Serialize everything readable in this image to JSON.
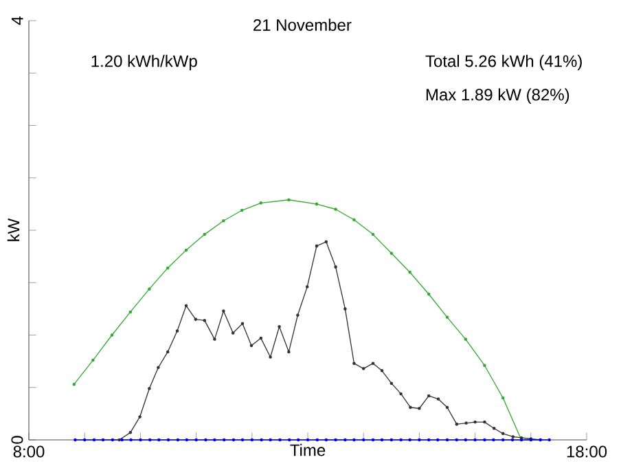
{
  "chart_data": {
    "type": "line",
    "title": "21 November",
    "xlabel": "Time",
    "ylabel": "kW",
    "annotations": [
      "1.20 kWh/kWp",
      "Total 5.26 kWh (41%)",
      "Max 1.89 kW (82%)"
    ],
    "xlim": [
      8,
      18
    ],
    "ylim": [
      0,
      4
    ],
    "xticks": [
      {
        "value": 8,
        "label": "8:00"
      },
      {
        "value": 9,
        "label": null
      },
      {
        "value": 10,
        "label": null
      },
      {
        "value": 11,
        "label": null
      },
      {
        "value": 12,
        "label": null
      },
      {
        "value": 13,
        "label": null
      },
      {
        "value": 14,
        "label": null
      },
      {
        "value": 15,
        "label": null
      },
      {
        "value": 16,
        "label": null
      },
      {
        "value": 17,
        "label": null
      },
      {
        "value": 18,
        "label": "18:00"
      }
    ],
    "yticks": [
      0,
      {
        "value": 0.5,
        "label": null
      },
      {
        "value": 1,
        "label": null
      },
      {
        "value": 1.5,
        "label": null
      },
      {
        "value": 2,
        "label": null
      },
      {
        "value": 2.5,
        "label": null
      },
      {
        "value": 3,
        "label": null
      },
      {
        "value": 3.5,
        "label": null
      },
      4
    ],
    "marker": "circle",
    "line_style": "solid",
    "series": [
      {
        "color": "#33aa33",
        "x": [
          8.81,
          9.15,
          9.49,
          9.82,
          10.16,
          10.49,
          10.82,
          11.15,
          11.49,
          11.82,
          12.16,
          12.66,
          13.16,
          13.5,
          13.83,
          14.17,
          14.5,
          14.83,
          15.17,
          15.5,
          15.83,
          16.17,
          16.5,
          16.83,
          17.0
        ],
        "values": [
          0.53,
          0.76,
          1.0,
          1.22,
          1.44,
          1.64,
          1.81,
          1.96,
          2.09,
          2.19,
          2.26,
          2.29,
          2.25,
          2.2,
          2.1,
          1.96,
          1.78,
          1.6,
          1.39,
          1.17,
          0.96,
          0.71,
          0.4,
          0,
          0
        ]
      },
      {
        "color": "#333333",
        "x": [
          9.62,
          9.82,
          9.99,
          10.16,
          10.32,
          10.49,
          10.66,
          10.82,
          10.99,
          11.15,
          11.33,
          11.49,
          11.66,
          11.83,
          11.99,
          12.16,
          12.33,
          12.49,
          12.66,
          12.82,
          12.99,
          13.16,
          13.33,
          13.5,
          13.67,
          13.83,
          14.0,
          14.17,
          14.33,
          14.5,
          14.67,
          14.84,
          15.0,
          15.17,
          15.34,
          15.5,
          15.67,
          15.84,
          16.0,
          16.17,
          16.34,
          16.5,
          16.68,
          16.83,
          17.0,
          17.17
        ],
        "values": [
          0,
          0.07,
          0.22,
          0.49,
          0.69,
          0.84,
          1.04,
          1.28,
          1.15,
          1.14,
          0.96,
          1.23,
          1.02,
          1.11,
          0.9,
          0.97,
          0.79,
          1.08,
          0.84,
          1.19,
          1.46,
          1.85,
          1.89,
          1.65,
          1.25,
          0.73,
          0.68,
          0.73,
          0.66,
          0.54,
          0.44,
          0.31,
          0.3,
          0.42,
          0.39,
          0.31,
          0.15,
          0.16,
          0.17,
          0.17,
          0.11,
          0.06,
          0.03,
          0.02,
          0.01,
          0
        ]
      },
      {
        "color": "#0000ff",
        "x": [
          8.83,
          9.0,
          9.17,
          9.33,
          9.5,
          9.67,
          9.83,
          10.0,
          10.17,
          10.33,
          10.5,
          10.67,
          10.83,
          11.0,
          11.17,
          11.33,
          11.5,
          11.67,
          11.83,
          12.0,
          12.17,
          12.33,
          12.5,
          12.67,
          12.83,
          13.0,
          13.17,
          13.33,
          13.5,
          13.67,
          13.83,
          14.0,
          14.17,
          14.33,
          14.5,
          14.67,
          14.83,
          15.0,
          15.17,
          15.33,
          15.5,
          15.67,
          15.83,
          16.0,
          16.17,
          16.33,
          16.5,
          16.67,
          16.83,
          17.0,
          17.17,
          17.33
        ],
        "values": [
          0,
          0,
          0,
          0,
          0,
          0,
          0,
          0,
          0,
          0,
          0,
          0,
          0,
          0,
          0,
          0,
          0,
          0,
          0,
          0,
          0,
          0,
          0,
          0,
          0,
          0,
          0,
          0,
          0,
          0,
          0,
          0,
          0,
          0,
          0,
          0,
          0,
          0,
          0,
          0,
          0,
          0,
          0,
          0,
          0,
          0,
          0,
          0,
          0,
          0,
          0,
          0
        ]
      }
    ]
  }
}
